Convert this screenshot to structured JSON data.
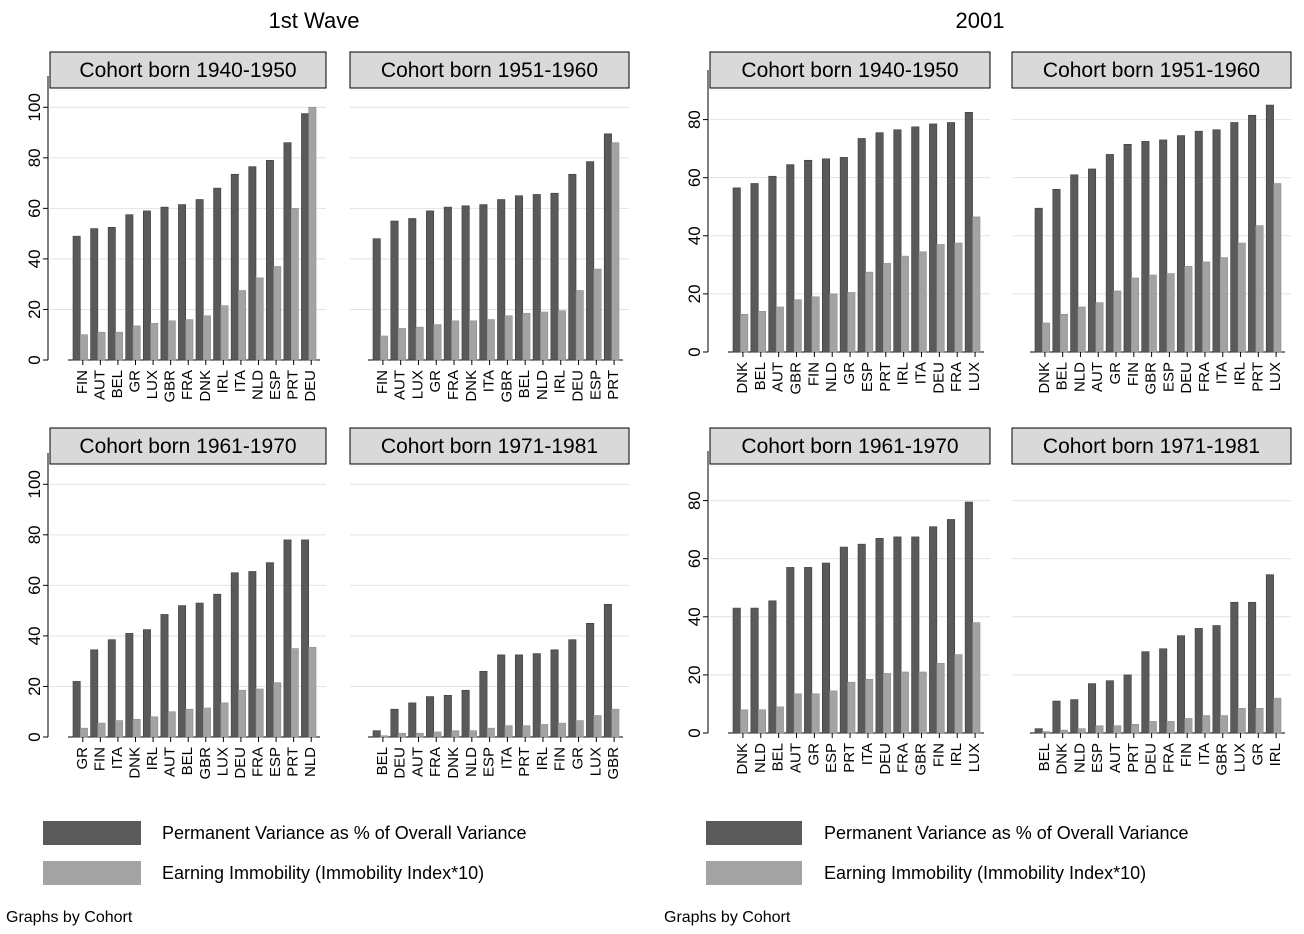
{
  "colors": {
    "permanent": "#5a5a5a",
    "immobility": "#a3a3a3",
    "strip_fill": "#d9d9d9",
    "grid": "#e2e2e2",
    "text": "#000000"
  },
  "legend_labels": {
    "permanent": "Permanent Variance as % of Overall Variance",
    "immobility": "Earning Immobility (Immobility Index*10)"
  },
  "chart_data": [
    {
      "type": "bar",
      "title": "1st Wave",
      "note": "Graphs by Cohort",
      "ylim": [
        0,
        110
      ],
      "yticks": [
        0,
        20,
        40,
        60,
        80,
        100
      ],
      "grid": true,
      "legend_position": "bottom",
      "panels": [
        {
          "strip": "Cohort born 1940-1950",
          "categories": [
            "FIN",
            "AUT",
            "BEL",
            "GR",
            "LUX",
            "GBR",
            "FRA",
            "DNK",
            "IRL",
            "ITA",
            "NLD",
            "ESP",
            "PRT",
            "DEU"
          ],
          "series": [
            {
              "name": "Permanent Variance as % of Overall Variance",
              "values": [
                49,
                52,
                52.5,
                57.5,
                59,
                60.5,
                61.5,
                63.5,
                68,
                73.5,
                76.5,
                79,
                86,
                97.5
              ]
            },
            {
              "name": "Earning Immobility (Immobility Index*10)",
              "values": [
                10,
                11,
                11,
                13.5,
                14.5,
                15.5,
                16,
                17.5,
                21.5,
                27.5,
                32.5,
                37,
                60,
                100
              ]
            }
          ]
        },
        {
          "strip": "Cohort born 1951-1960",
          "categories": [
            "FIN",
            "AUT",
            "LUX",
            "GR",
            "FRA",
            "DNK",
            "ITA",
            "GBR",
            "BEL",
            "NLD",
            "IRL",
            "DEU",
            "ESP",
            "PRT"
          ],
          "series": [
            {
              "name": "Permanent Variance as % of Overall Variance",
              "values": [
                48,
                55,
                56,
                59,
                60.5,
                61,
                61.5,
                63.5,
                65,
                65.5,
                66,
                73.5,
                78.5,
                89.5
              ]
            },
            {
              "name": "Earning Immobility (Immobility Index*10)",
              "values": [
                9.5,
                12.5,
                13,
                14,
                15.5,
                15.5,
                16,
                17.5,
                18.5,
                19,
                19.5,
                27.5,
                36,
                86
              ]
            }
          ]
        },
        {
          "strip": "Cohort born 1961-1970",
          "categories": [
            "GR",
            "FIN",
            "ITA",
            "DNK",
            "IRL",
            "AUT",
            "BEL",
            "GBR",
            "LUX",
            "DEU",
            "FRA",
            "ESP",
            "PRT",
            "NLD"
          ],
          "series": [
            {
              "name": "Permanent Variance as % of Overall Variance",
              "values": [
                22,
                34.5,
                38.5,
                41,
                42.5,
                48.5,
                52,
                53,
                56.5,
                65,
                65.5,
                69,
                78,
                78
              ]
            },
            {
              "name": "Earning Immobility (Immobility Index*10)",
              "values": [
                3.5,
                5.5,
                6.5,
                7,
                8,
                10,
                11,
                11.5,
                13.5,
                18.5,
                19,
                21.5,
                35,
                35.5
              ]
            }
          ]
        },
        {
          "strip": "Cohort born 1971-1981",
          "categories": [
            "BEL",
            "DEU",
            "AUT",
            "FRA",
            "DNK",
            "NLD",
            "ESP",
            "ITA",
            "PRT",
            "IRL",
            "FIN",
            "GR",
            "LUX",
            "GBR"
          ],
          "series": [
            {
              "name": "Permanent Variance as % of Overall Variance",
              "values": [
                2.5,
                11,
                13.5,
                16,
                16.5,
                18.5,
                26,
                32.5,
                32.5,
                33,
                34.5,
                38.5,
                45,
                52.5
              ]
            },
            {
              "name": "Earning Immobility (Immobility Index*10)",
              "values": [
                0.5,
                1.5,
                1.5,
                2,
                2.5,
                2.5,
                3.5,
                4.5,
                4.5,
                5,
                5.5,
                6.5,
                8.5,
                11
              ]
            }
          ]
        }
      ]
    },
    {
      "type": "bar",
      "title": "2001",
      "note": "Graphs by Cohort",
      "ylim": [
        0,
        95
      ],
      "yticks": [
        0,
        20,
        40,
        60,
        80
      ],
      "grid": true,
      "legend_position": "bottom",
      "panels": [
        {
          "strip": "Cohort born 1940-1950",
          "categories": [
            "DNK",
            "BEL",
            "AUT",
            "GBR",
            "FIN",
            "NLD",
            "GR",
            "ESP",
            "PRT",
            "IRL",
            "ITA",
            "DEU",
            "FRA",
            "LUX"
          ],
          "series": [
            {
              "name": "Permanent Variance as % of Overall Variance",
              "values": [
                56.5,
                58,
                60.5,
                64.5,
                66,
                66.5,
                67,
                73.5,
                75.5,
                76.5,
                77.5,
                78.5,
                79,
                82.5
              ]
            },
            {
              "name": "Earning Immobility (Immobility Index*10)",
              "values": [
                13,
                14,
                15.5,
                18,
                19,
                20,
                20.5,
                27.5,
                30.5,
                33,
                34.5,
                37,
                37.5,
                46.5
              ]
            }
          ]
        },
        {
          "strip": "Cohort born 1951-1960",
          "categories": [
            "DNK",
            "BEL",
            "NLD",
            "AUT",
            "GR",
            "FIN",
            "GBR",
            "ESP",
            "DEU",
            "FRA",
            "ITA",
            "IRL",
            "PRT",
            "LUX"
          ],
          "series": [
            {
              "name": "Permanent Variance as % of Overall Variance",
              "values": [
                49.5,
                56,
                61,
                63,
                68,
                71.5,
                72.5,
                73,
                74.5,
                76,
                76.5,
                79,
                81.5,
                85
              ]
            },
            {
              "name": "Earning Immobility (Immobility Index*10)",
              "values": [
                10,
                13,
                15.5,
                17,
                21,
                25.5,
                26.5,
                27,
                29.5,
                31,
                32.5,
                37.5,
                43.5,
                58
              ]
            }
          ]
        },
        {
          "strip": "Cohort born 1961-1970",
          "categories": [
            "DNK",
            "NLD",
            "BEL",
            "AUT",
            "GR",
            "ESP",
            "PRT",
            "ITA",
            "DEU",
            "FRA",
            "GBR",
            "FIN",
            "IRL",
            "LUX"
          ],
          "series": [
            {
              "name": "Permanent Variance as % of Overall Variance",
              "values": [
                43,
                43,
                45.5,
                57,
                57,
                58.5,
                64,
                65,
                67,
                67.5,
                67.5,
                71,
                73.5,
                79.5
              ]
            },
            {
              "name": "Earning Immobility (Immobility Index*10)",
              "values": [
                8,
                8,
                9,
                13.5,
                13.5,
                14.5,
                17.5,
                18.5,
                20.5,
                21,
                21,
                24,
                27,
                38
              ]
            }
          ]
        },
        {
          "strip": "Cohort born 1971-1981",
          "categories": [
            "BEL",
            "DNK",
            "NLD",
            "ESP",
            "AUT",
            "PRT",
            "DEU",
            "FRA",
            "FIN",
            "ITA",
            "GBR",
            "LUX",
            "GR",
            "IRL"
          ],
          "series": [
            {
              "name": "Permanent Variance as % of Overall Variance",
              "values": [
                1.5,
                11,
                11.5,
                17,
                18,
                20,
                28,
                29,
                33.5,
                36,
                37,
                45,
                45,
                54.5
              ]
            },
            {
              "name": "Earning Immobility (Immobility Index*10)",
              "values": [
                0.5,
                1,
                1.5,
                2.5,
                2.5,
                3,
                4,
                4,
                5,
                6,
                6,
                8.5,
                8.5,
                12
              ]
            }
          ]
        }
      ]
    }
  ]
}
